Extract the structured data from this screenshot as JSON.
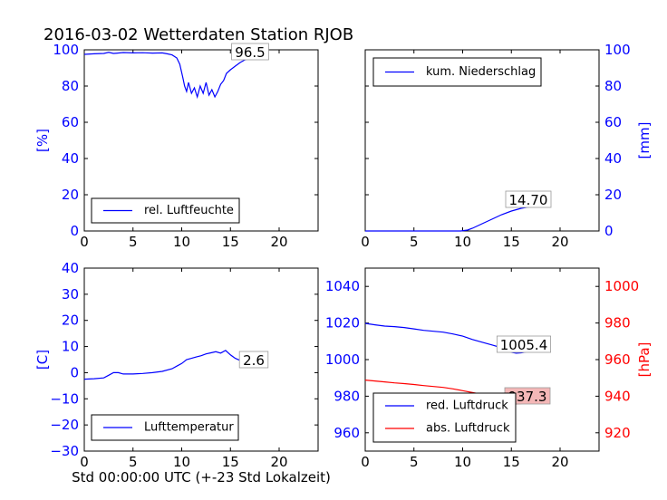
{
  "title": "2016-03-02 Wetterdaten Station RJOB",
  "xlabel": "Std 00:00:00 UTC (+-23 Std Lokalzeit)",
  "colors": {
    "blue": "#0000ff",
    "red": "#ff0000",
    "axis": "#000000",
    "redbox": "#f4b7b7"
  },
  "chart_data": [
    {
      "type": "line",
      "panel": "top-left",
      "xlim": [
        0,
        24
      ],
      "xticks": [
        "0",
        "5",
        "10",
        "15",
        "20"
      ],
      "ylim": [
        0,
        100
      ],
      "yticks_left": [
        "0",
        "20",
        "40",
        "60",
        "80",
        "100"
      ],
      "ylabel_left": "[%]",
      "legend_placement": "lower-left",
      "annotation": "96.5",
      "series": [
        {
          "name": "rel. Luftfeuchte",
          "color": "#0000ff",
          "x": [
            0,
            1,
            2,
            2.5,
            3,
            4,
            5,
            6,
            7,
            8,
            8.5,
            9,
            9.5,
            9.8,
            10.1,
            10.3,
            10.5,
            10.7,
            11,
            11.3,
            11.6,
            11.9,
            12.2,
            12.5,
            12.8,
            13.1,
            13.4,
            13.7,
            14,
            14.3,
            14.6,
            15,
            15.5,
            16,
            16.5,
            17,
            17.5,
            18,
            18.5
          ],
          "y": [
            97.5,
            97.8,
            98,
            98.6,
            98,
            98.5,
            98.3,
            98.4,
            98.2,
            98.3,
            97.8,
            97.2,
            95.5,
            92,
            85,
            80,
            77,
            82,
            76,
            79,
            74,
            80,
            76,
            82,
            75,
            78,
            74,
            77,
            81,
            83,
            87,
            89,
            91,
            93,
            94.5,
            95.3,
            96,
            96.3,
            96.5
          ]
        }
      ]
    },
    {
      "type": "line",
      "panel": "top-right",
      "xlim": [
        0,
        24
      ],
      "xticks": [
        "0",
        "5",
        "10",
        "15",
        "20"
      ],
      "ylim": [
        0,
        100
      ],
      "yticks_right": [
        "0",
        "20",
        "40",
        "60",
        "80",
        "100"
      ],
      "ylabel_right": "[mm]",
      "legend_placement": "top-left",
      "annotation": "14.70",
      "series": [
        {
          "name": "kum. Niederschlag",
          "color": "#0000ff",
          "x": [
            0,
            9.8,
            10.5,
            11,
            12,
            13,
            14,
            15,
            16,
            17,
            18,
            18.5
          ],
          "y": [
            0,
            0,
            0.5,
            1.5,
            4,
            6.5,
            9,
            11,
            12.5,
            13.5,
            14.2,
            14.7
          ]
        }
      ]
    },
    {
      "type": "line",
      "panel": "bottom-left",
      "xlim": [
        0,
        24
      ],
      "xticks": [
        "0",
        "5",
        "10",
        "15",
        "20"
      ],
      "ylim": [
        -30,
        40
      ],
      "yticks_left": [
        "−30",
        "−20",
        "−10",
        "0",
        "10",
        "20",
        "30",
        "40"
      ],
      "ylabel_left": "[C]",
      "legend_placement": "lower-left",
      "annotation": "2.6",
      "series": [
        {
          "name": "Lufttemperatur",
          "color": "#0000ff",
          "x": [
            0,
            1,
            2,
            2.5,
            3,
            3.5,
            4,
            5,
            6,
            7,
            8,
            9,
            9.5,
            10,
            10.5,
            11,
            11.5,
            12,
            12.5,
            13,
            13.5,
            14,
            14.5,
            15,
            15.5,
            16,
            16.5,
            17,
            17.5,
            18,
            18.5
          ],
          "y": [
            -2.5,
            -2.3,
            -2,
            -1,
            0,
            0,
            -0.5,
            -0.5,
            -0.3,
            0,
            0.5,
            1.5,
            2.5,
            3.5,
            5,
            5.5,
            6,
            6.5,
            7.2,
            7.6,
            8,
            7.5,
            8.5,
            6.8,
            5.5,
            4.7,
            4,
            3.5,
            3,
            2.8,
            2.6
          ]
        }
      ]
    },
    {
      "type": "line",
      "panel": "bottom-right",
      "xlim": [
        0,
        24
      ],
      "xticks": [
        "0",
        "5",
        "10",
        "15",
        "20"
      ],
      "ylim_left": [
        950,
        1050
      ],
      "yticks_left": [
        "960",
        "980",
        "1000",
        "1020",
        "1040"
      ],
      "ylim_right": [
        910,
        1010
      ],
      "yticks_right": [
        "920",
        "940",
        "960",
        "980",
        "1000"
      ],
      "ylabel_right": "[hPa]",
      "legend_placement": "lower-left",
      "annotations": [
        "1005.4",
        "937.3"
      ],
      "series": [
        {
          "name": "red. Luftdruck",
          "color": "#0000ff",
          "axis": "left",
          "x": [
            0,
            1,
            2,
            3,
            4,
            5,
            6,
            7,
            8,
            9,
            10,
            11,
            12,
            13,
            14,
            14.5,
            15,
            15.5,
            16,
            16.5,
            17,
            17.5,
            18,
            18.5
          ],
          "y": [
            1019.8,
            1019,
            1018.3,
            1018,
            1017.5,
            1016.8,
            1016,
            1015.5,
            1015,
            1014,
            1012.8,
            1011,
            1009.5,
            1008,
            1006.5,
            1005,
            1004,
            1003.5,
            1003.7,
            1004.2,
            1004.5,
            1005,
            1005.2,
            1005.4
          ]
        },
        {
          "name": "abs. Luftdruck",
          "color": "#ff0000",
          "axis": "right",
          "x": [
            0,
            1,
            2,
            3,
            4,
            5,
            6,
            7,
            8,
            9,
            10,
            11,
            12,
            13,
            14,
            14.5,
            15,
            15.5,
            16,
            16.5,
            17,
            17.5,
            18,
            18.5
          ],
          "y": [
            948.8,
            948.3,
            947.8,
            947.3,
            946.9,
            946.4,
            945.8,
            945.3,
            944.8,
            944,
            943,
            942,
            941,
            940,
            939,
            937.8,
            936.5,
            935.8,
            936,
            936.4,
            936.8,
            937,
            937.2,
            937.3
          ]
        }
      ]
    }
  ]
}
